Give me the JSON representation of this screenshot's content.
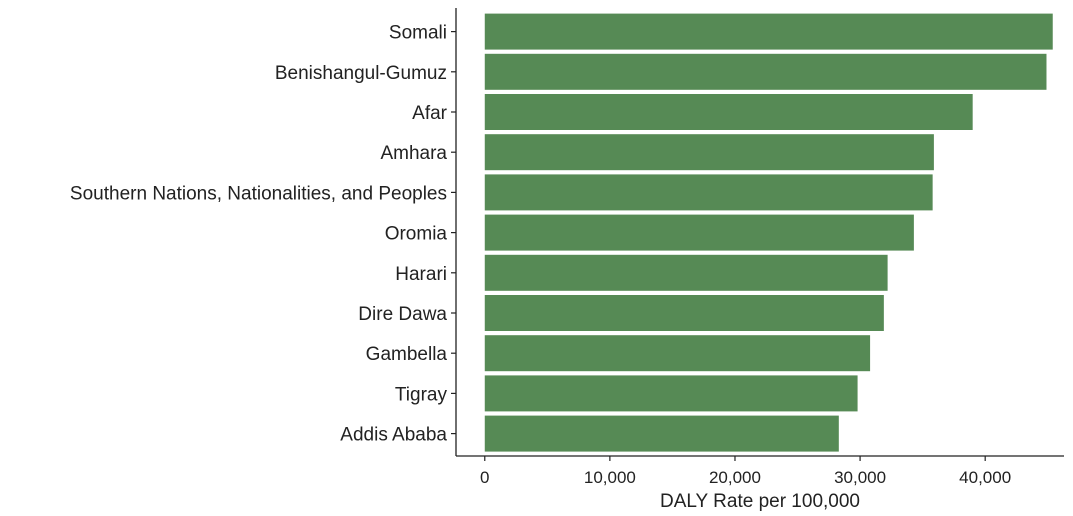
{
  "chart_data": {
    "type": "bar",
    "orientation": "horizontal",
    "title": "",
    "xlabel": "DALY Rate per 100,000",
    "ylabel": "",
    "categories": [
      "Somali",
      "Benishangul-Gumuz",
      "Afar",
      "Amhara",
      "Southern Nations, Nationalities, and Peoples",
      "Oromia",
      "Harari",
      "Dire Dawa",
      "Gambella",
      "Tigray",
      "Addis Ababa"
    ],
    "values": [
      45400,
      44900,
      39000,
      35900,
      35800,
      34300,
      32200,
      31900,
      30800,
      29800,
      28300
    ],
    "xlim": [
      -2300,
      46300
    ],
    "xticks": [
      0,
      10000,
      20000,
      30000,
      40000
    ],
    "xtick_labels": [
      "0",
      "10,000",
      "20,000",
      "30,000",
      "40,000"
    ],
    "bar_color": "#568a55",
    "grid": false,
    "legend": "none"
  }
}
